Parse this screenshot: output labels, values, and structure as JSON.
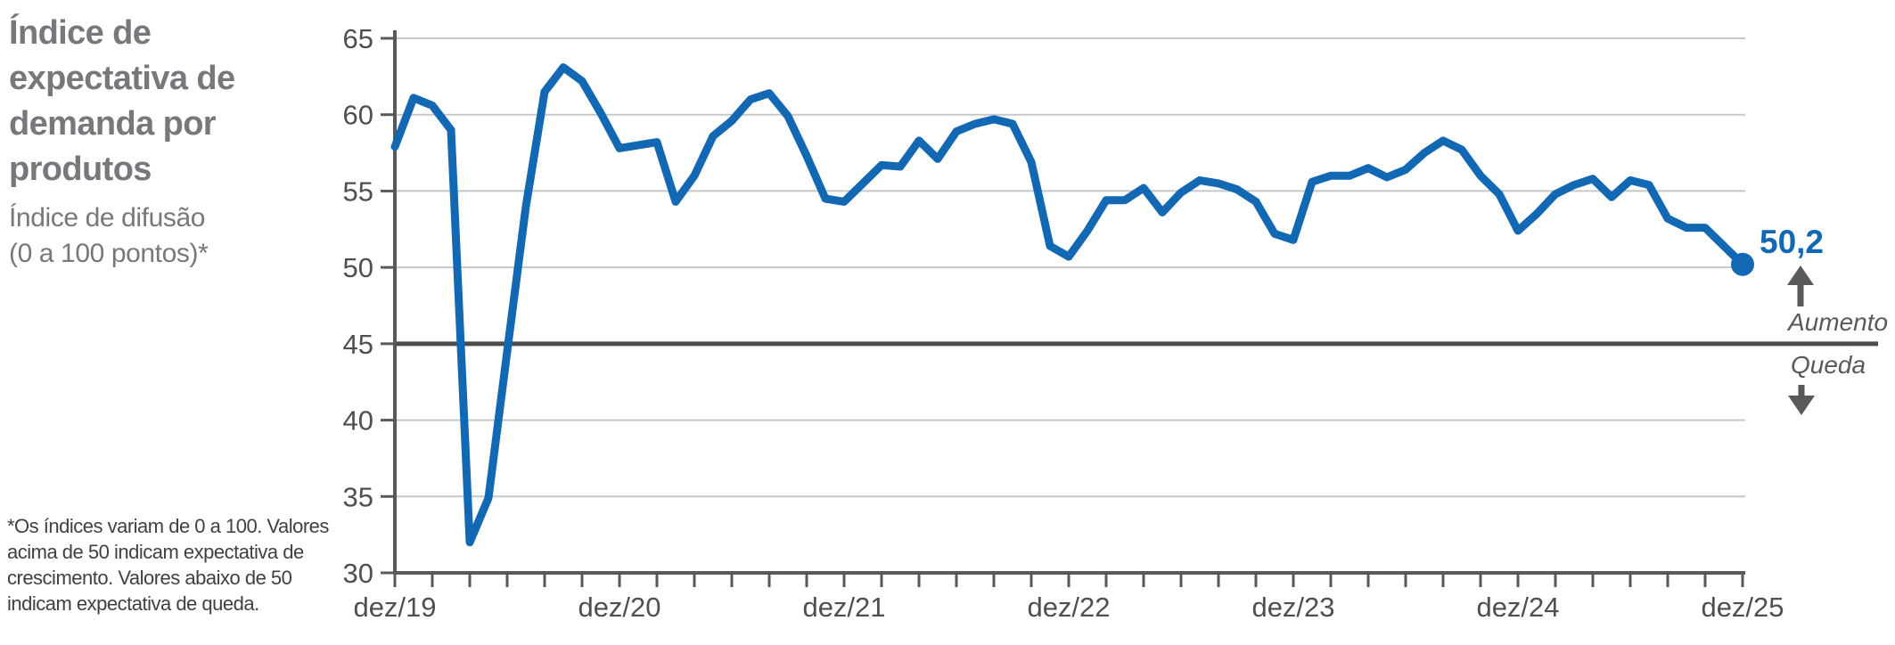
{
  "header": {
    "title_lines": [
      "Índice de",
      "expectativa de",
      "demanda por",
      "produtos"
    ],
    "subtitle_lines": [
      "Índice de difusão",
      "(0 a 100 pontos)*"
    ]
  },
  "footnote": {
    "lines": [
      "*Os índices variam de 0 a 100. Valores",
      "acima de  50 indicam expectativa de",
      "crescimento. Valores abaixo de 50",
      "indicam expectativa de queda."
    ]
  },
  "annotations": {
    "last_value_label": "50,2",
    "increase_label": "Aumento",
    "decrease_label": "Queda",
    "increase_icon": "arrow-up",
    "decrease_icon": "arrow-down"
  },
  "colors": {
    "series_blue": "#1368b4",
    "title_gray": "#77787b",
    "footnote_gray": "#404041",
    "axis_label_gray": "#4e4f51",
    "axis_line_gray": "#58595b",
    "gridline_gray": "#c6c7c9",
    "reference_line_gray": "#4b4c4e"
  },
  "chart_data": {
    "type": "line",
    "title": "Índice de expectativa de demanda por produtos",
    "subtitle": "Índice de difusão (0 a 100 pontos)*",
    "ylim": [
      30,
      65
    ],
    "y_ticks": [
      65,
      60,
      55,
      50,
      45,
      40,
      35,
      30
    ],
    "y_gridlines": [
      65,
      60,
      55,
      50,
      40,
      35
    ],
    "reference_line": 45,
    "grid": true,
    "legend": "none",
    "x_tick_labels": [
      "dez/19",
      "dez/20",
      "dez/21",
      "dez/22",
      "dez/23",
      "dez/24",
      "dez/25"
    ],
    "x_label_every_n_months": 12,
    "x_minor_tick_every_n_months": 2,
    "last_point": {
      "x": "dez/25",
      "value": 50.2,
      "label": "50,2"
    },
    "x": [
      "dez/19",
      "jan/20",
      "fev/20",
      "mar/20",
      "abr/20",
      "mai/20",
      "jun/20",
      "jul/20",
      "ago/20",
      "set/20",
      "out/20",
      "nov/20",
      "dez/20",
      "jan/21",
      "fev/21",
      "mar/21",
      "abr/21",
      "mai/21",
      "jun/21",
      "jul/21",
      "ago/21",
      "set/21",
      "out/21",
      "nov/21",
      "dez/21",
      "jan/22",
      "fev/22",
      "mar/22",
      "abr/22",
      "mai/22",
      "jun/22",
      "jul/22",
      "ago/22",
      "set/22",
      "out/22",
      "nov/22",
      "dez/22",
      "jan/23",
      "fev/23",
      "mar/23",
      "abr/23",
      "mai/23",
      "jun/23",
      "jul/23",
      "ago/23",
      "set/23",
      "out/23",
      "nov/23",
      "dez/23",
      "jan/24",
      "fev/24",
      "mar/24",
      "abr/24",
      "mai/24",
      "jun/24",
      "jul/24",
      "ago/24",
      "set/24",
      "out/24",
      "nov/24",
      "dez/24",
      "jan/25",
      "fev/25",
      "mar/25",
      "abr/25",
      "mai/25",
      "jun/25",
      "jul/25",
      "ago/25",
      "set/25",
      "out/25",
      "nov/25",
      "dez/25"
    ],
    "values": [
      57.9,
      61.1,
      60.6,
      59.0,
      32.0,
      34.9,
      44.5,
      54.0,
      61.5,
      63.1,
      62.2,
      60.1,
      57.8,
      58.0,
      58.2,
      54.3,
      56.0,
      58.6,
      59.6,
      61.0,
      61.4,
      59.9,
      57.3,
      54.5,
      54.3,
      55.5,
      56.7,
      56.6,
      58.3,
      57.1,
      58.9,
      59.4,
      59.7,
      59.4,
      56.9,
      51.4,
      50.7,
      52.4,
      54.4,
      54.4,
      55.2,
      53.6,
      54.9,
      55.7,
      55.5,
      55.1,
      54.3,
      52.2,
      51.8,
      55.6,
      56.0,
      56.0,
      56.5,
      55.9,
      56.4,
      57.5,
      58.3,
      57.7,
      56.0,
      54.8,
      52.4,
      53.5,
      54.8,
      55.4,
      55.8,
      54.6,
      55.7,
      55.4,
      53.2,
      52.6,
      52.6,
      51.4,
      50.2
    ]
  }
}
